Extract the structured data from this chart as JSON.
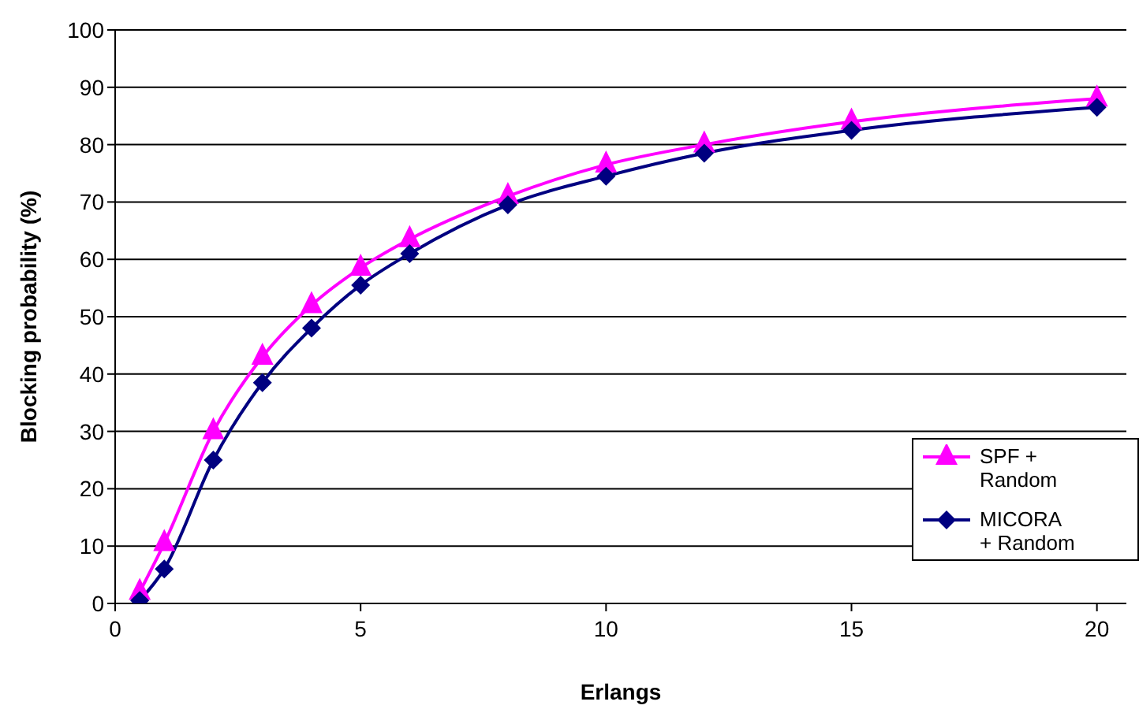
{
  "chart_data": {
    "type": "line",
    "xlabel": "Erlangs",
    "ylabel": "Blocking probability (%)",
    "x": [
      0.5,
      1,
      2,
      3,
      4,
      5,
      6,
      8,
      10,
      12,
      15,
      20
    ],
    "series": [
      {
        "name": "SPF + Random",
        "color": "#ff00ff",
        "marker": "triangle",
        "values": [
          2,
          10.5,
          30,
          43,
          52,
          58.5,
          63.5,
          71,
          76.5,
          80,
          84,
          88
        ]
      },
      {
        "name": "MICORA + Random",
        "color": "#000080",
        "marker": "diamond",
        "values": [
          0.5,
          6,
          25,
          38.5,
          48,
          55.5,
          61,
          69.5,
          74.5,
          78.5,
          82.5,
          86.5
        ]
      }
    ],
    "xlim": [
      0,
      20.6
    ],
    "xticks": [
      0,
      5,
      10,
      15,
      20
    ],
    "ylim": [
      0,
      100
    ],
    "yticks": [
      0,
      10,
      20,
      30,
      40,
      50,
      60,
      70,
      80,
      90,
      100
    ],
    "grid": "y",
    "legend": "right",
    "line_style": "solid"
  }
}
